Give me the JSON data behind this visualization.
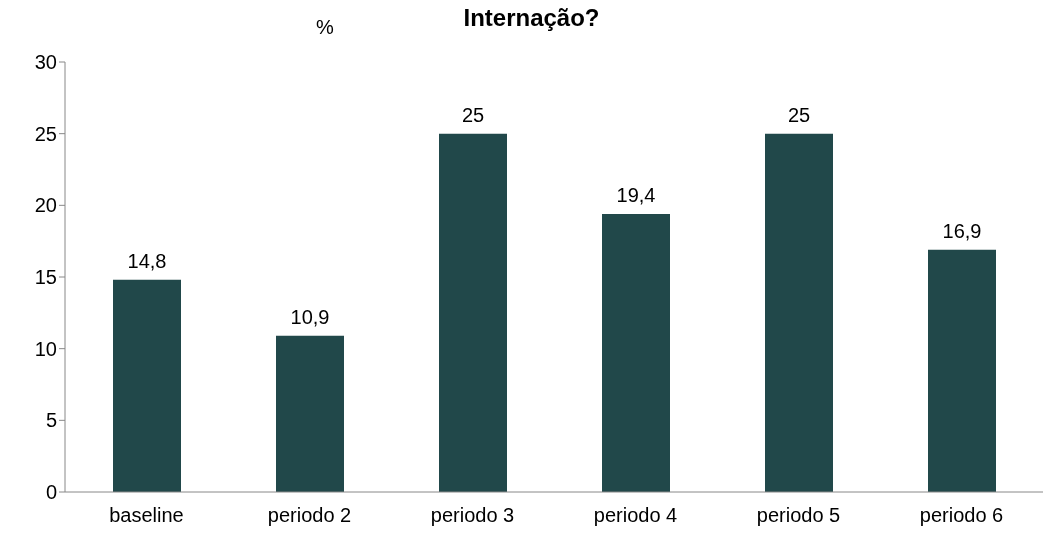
{
  "chart_data": {
    "type": "bar",
    "title": "Internação?",
    "ylabel": "%",
    "categories": [
      "baseline",
      "periodo 2",
      "periodo 3",
      "periodo 4",
      "periodo 5",
      "periodo 6"
    ],
    "values": [
      14.8,
      10.9,
      25,
      19.4,
      25,
      16.9
    ],
    "value_labels": [
      "14,8",
      "10,9",
      "25",
      "19,4",
      "25",
      "16,9"
    ],
    "color": "#21484a",
    "ylim": [
      0,
      30
    ],
    "yticks": [
      0,
      5,
      10,
      15,
      20,
      25,
      30
    ],
    "grid": false
  }
}
